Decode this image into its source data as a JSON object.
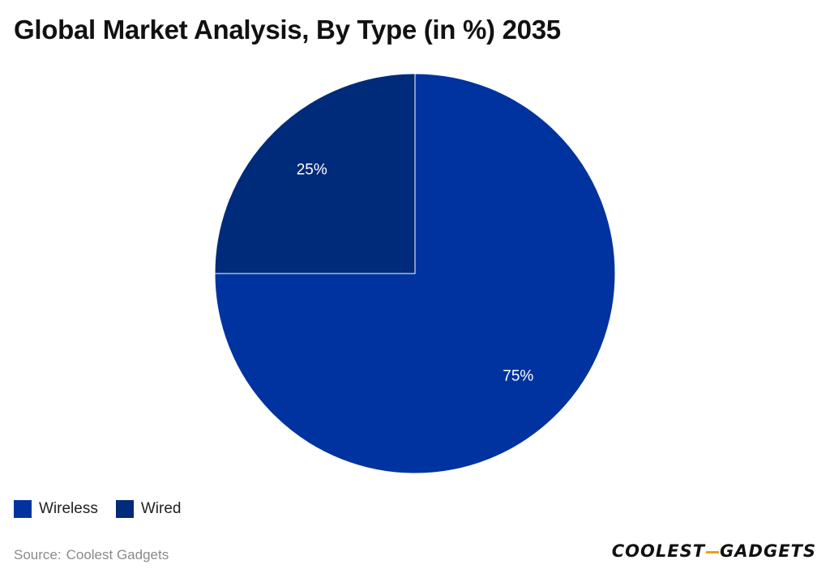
{
  "colors": {
    "wireless": "#0033a0",
    "wired": "#002a7a",
    "slice_label": "#ffffff",
    "brand_accent": "#f39c12"
  },
  "source": {
    "label": "Source:",
    "value": "Coolest Gadgets"
  },
  "brand": {
    "part1": "COOLEST",
    "part2": "GADGETS"
  },
  "chart_data": {
    "type": "pie",
    "title": "Global Market Analysis, By Type (in %) 2035",
    "legend_position": "bottom-left",
    "slices": [
      {
        "name": "Wireless",
        "value": 75,
        "label": "75%"
      },
      {
        "name": "Wired",
        "value": 25,
        "label": "25%"
      }
    ]
  }
}
